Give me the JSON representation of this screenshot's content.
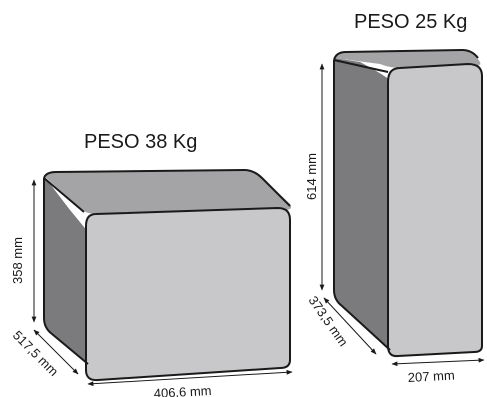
{
  "left_box": {
    "weight_label": "PESO 38 Kg",
    "height_label": "358 mm",
    "depth_label": "517,5 mm",
    "width_label": "406,6 mm"
  },
  "right_box": {
    "weight_label": "PESO 25 Kg",
    "height_label": "614 mm",
    "depth_label": "373,5 mm",
    "width_label": "207 mm"
  },
  "colors": {
    "front_face": "#c8c8ca",
    "top_face": "#a4a4a6",
    "side_face": "#7b7b7d",
    "outline": "#1a1a1a"
  }
}
